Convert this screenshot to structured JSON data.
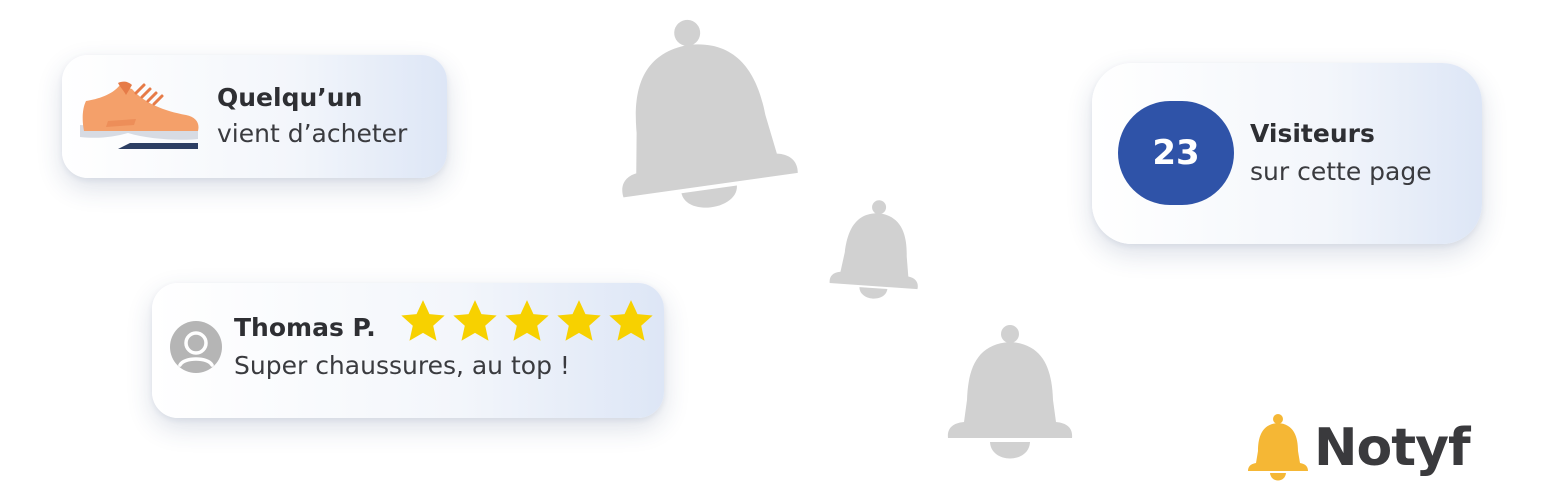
{
  "purchase_card": {
    "title": "Quelqu’un",
    "subtitle": "vient d’acheter",
    "icon": "shoe-icon"
  },
  "visitors_card": {
    "count": "23",
    "title": "Visiteurs",
    "subtitle": "sur cette page"
  },
  "review_card": {
    "name": "Thomas P.",
    "text": "Super chaussures, au top !",
    "rating": 5,
    "rating_max": 5,
    "avatar_icon": "user-avatar-icon",
    "star_color": "#f7d100"
  },
  "brand": {
    "name": "Notyf",
    "icon": "bell-icon",
    "accent": "#f5b735"
  },
  "colors": {
    "badge": "#2f53a8",
    "bell_decor": "#d1d1d1",
    "shoe_main": "#f4a06a",
    "shoe_sole_dark": "#2c3e63"
  }
}
